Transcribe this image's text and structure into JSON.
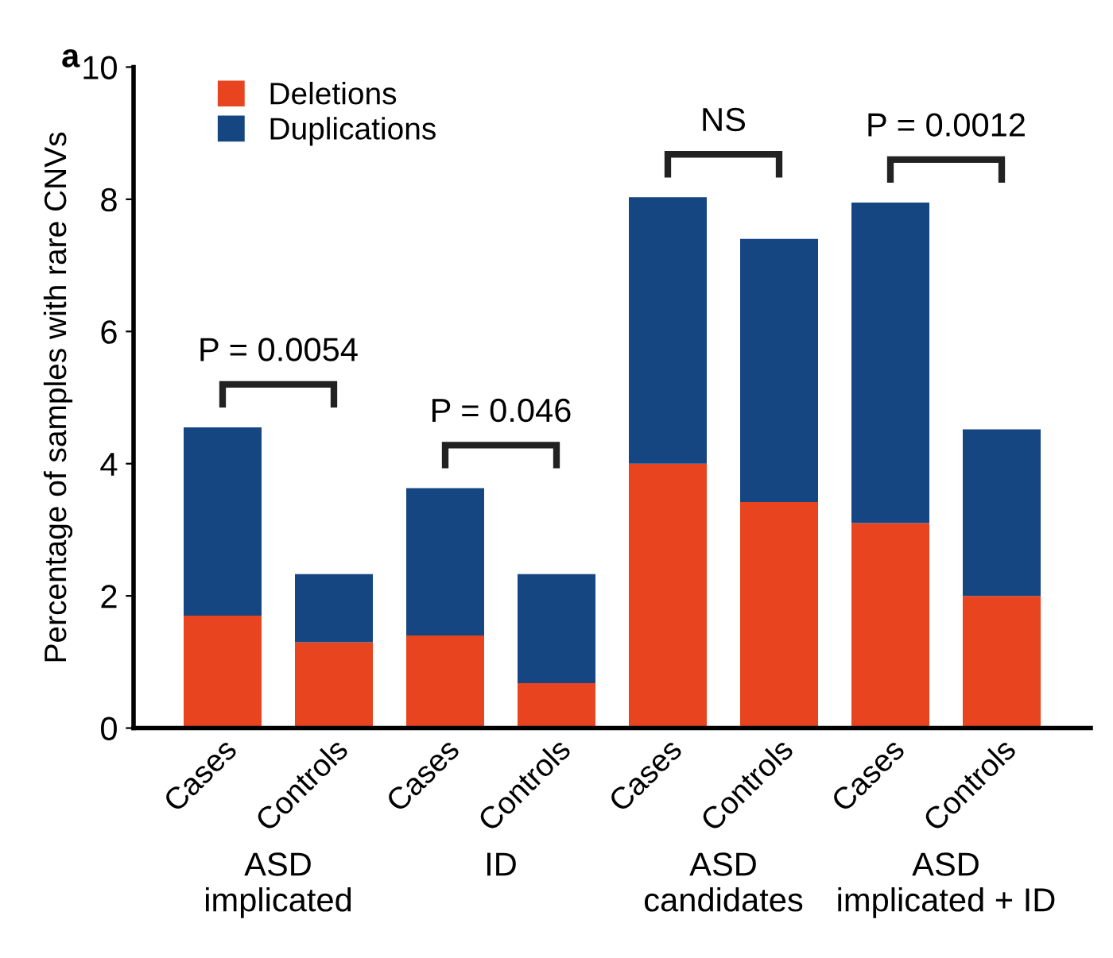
{
  "chart_data": {
    "type": "bar",
    "stacked": true,
    "ylabel": "Percentage of samples with rare CNVs",
    "categories": [
      "Cases",
      "Controls",
      "Cases",
      "Controls",
      "Cases",
      "Controls",
      "Cases",
      "Controls"
    ],
    "series": [
      {
        "name": "Deletions",
        "color": "#e84420",
        "values": [
          1.7,
          1.3,
          1.4,
          0.68,
          4.0,
          3.42,
          3.1,
          2.0
        ]
      },
      {
        "name": "Duplications",
        "color": "#154682",
        "values": [
          2.85,
          1.03,
          2.23,
          1.65,
          4.03,
          3.98,
          4.85,
          2.52
        ]
      }
    ],
    "ylim": [
      0,
      10
    ],
    "yticks": [
      0,
      2,
      4,
      6,
      8,
      10
    ],
    "grid": false,
    "legend": "top left",
    "annotations": [
      "P = 0.0054",
      "P = 0.046",
      "NS",
      "P = 0.0012",
      "ASD\nimplicated",
      "ID",
      "ASD\ncandidates",
      "ASD\nimplicated + ID",
      "a"
    ]
  }
}
